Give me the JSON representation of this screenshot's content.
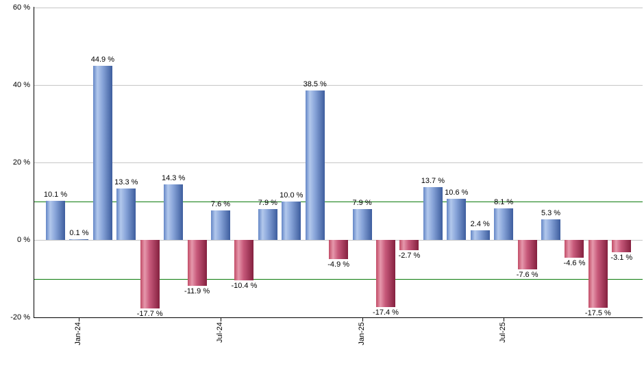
{
  "chart_data": {
    "type": "bar",
    "title": "",
    "xlabel": "",
    "ylabel": "",
    "unit": "%",
    "ylim": [
      -20,
      60
    ],
    "grid_on": true,
    "legend": "none",
    "values": [
      10.1,
      0.1,
      44.9,
      13.3,
      -17.7,
      14.3,
      -11.9,
      7.6,
      -10.4,
      7.9,
      10.0,
      38.5,
      -4.9,
      7.9,
      -17.4,
      -2.7,
      13.7,
      10.6,
      2.4,
      8.1,
      -7.6,
      5.3,
      -4.6,
      -17.5,
      -3.1
    ],
    "bar_labels": [
      "10.1 %",
      "0.1 %",
      "44.9 %",
      "13.3 %",
      "-17.7 %",
      "14.3 %",
      "-11.9 %",
      "7.6 %",
      "-10.4 %",
      "7.9 %",
      "10.0 %",
      "38.5 %",
      "-4.9 %",
      "7.9 %",
      "-17.4 %",
      "-2.7 %",
      "13.7 %",
      "10.6 %",
      "2.4 %",
      "8.1 %",
      "-7.6 %",
      "5.3 %",
      "-4.6 %",
      "-17.5 %",
      "-3.1 %"
    ],
    "x_ticks": [
      {
        "bar_index": 1,
        "label": "Jan-24"
      },
      {
        "bar_index": 7,
        "label": "Jul-24"
      },
      {
        "bar_index": 13,
        "label": "Jan-25"
      },
      {
        "bar_index": 19,
        "label": "Jul-25"
      }
    ],
    "y_ticks": [
      {
        "value": 60,
        "label": "60 %"
      },
      {
        "value": 40,
        "label": "40 %"
      },
      {
        "value": 20,
        "label": "20 %"
      },
      {
        "value": 0,
        "label": "0 %"
      },
      {
        "value": -20,
        "label": "-20 %"
      }
    ],
    "gridline_values": [
      60,
      40,
      20,
      0
    ],
    "threshold_lines": {
      "values": [
        10,
        -10
      ],
      "color": "#0b7a0b"
    },
    "colors": {
      "positive_bar": "#7b9cd6",
      "negative_bar": "#c34b6b",
      "positive_gradient": [
        "#6486c6",
        "#b2c8ec",
        "#8aa6da",
        "#3d5d9e"
      ],
      "negative_gradient": [
        "#c14b66",
        "#e698ac",
        "#c7597a",
        "#84203f"
      ],
      "gridline": "#c6c6c6",
      "axis": "#000000",
      "label_text": "#000000",
      "background": "#ffffff"
    }
  }
}
